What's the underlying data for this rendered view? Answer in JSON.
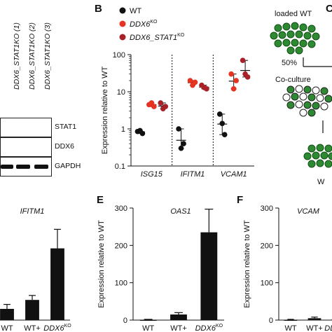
{
  "panelA": {
    "lanes": [
      "DDX6_STAT1KO (1)",
      "DDX6_STAT1KO (2)",
      "DDX6_STAT1KO (3)"
    ],
    "blots": [
      "STAT1",
      "DDX6",
      "GAPDH"
    ]
  },
  "panelB": {
    "letter": "B",
    "legend": [
      {
        "label": "WT",
        "color": "#111111"
      },
      {
        "label": "DDX6KO",
        "color": "#e63322"
      },
      {
        "label": "DDX6_STAT1KO",
        "color": "#a82028"
      }
    ],
    "ylabel": "Expression relative to WT",
    "genes": [
      "ISG15",
      "IFITM1",
      "VCAM1"
    ],
    "yticks": [
      "0.1",
      "1",
      "10",
      "100"
    ]
  },
  "panelC": {
    "letter": "C",
    "text1": "loaded WT",
    "text2": "50%",
    "text3": "Co-culture",
    "text4": "W"
  },
  "panelD": {
    "title": "IFITM1"
  },
  "panelE": {
    "letter": "E",
    "title": "OAS1",
    "ylabel": "Expression relative to WT",
    "yticks": [
      "0",
      "100",
      "200",
      "300"
    ]
  },
  "panelF": {
    "letter": "F",
    "title": "VCAM",
    "ylabel": "Expression relative to WT",
    "yticks": [
      "0",
      "100",
      "200",
      "300"
    ]
  },
  "xcats": [
    "WT",
    "WT+",
    "DDX6KO"
  ],
  "chart_data": [
    {
      "type": "scatter",
      "ylabel": "Expression relative to WT",
      "log_scale": true,
      "ylim": [
        0.1,
        100
      ],
      "categories": [
        "ISG15",
        "IFITM1",
        "VCAM1"
      ],
      "series": [
        {
          "name": "WT",
          "points": [
            [
              0.85,
              0.9,
              0.75
            ],
            [
              1.0,
              0.3,
              0.4
            ],
            [
              2.5,
              1.4,
              0.7
            ]
          ]
        },
        {
          "name": "DDX6KO",
          "points": [
            [
              4.5,
              5,
              4.0
            ],
            [
              20,
              15,
              18
            ],
            [
              30,
              12,
              20
            ]
          ]
        },
        {
          "name": "DDX6_STAT1KO",
          "points": [
            [
              5,
              3.5,
              4.0
            ],
            [
              15,
              13,
              12
            ],
            [
              70,
              30,
              25
            ]
          ]
        }
      ]
    },
    {
      "type": "bar",
      "title": "IFITM1",
      "categories": [
        "WT",
        "WT+",
        "DDX6KO"
      ],
      "values": [
        1,
        1.8,
        6.4
      ],
      "errors": [
        0.4,
        0.4,
        1.7
      ],
      "ylim": [
        0,
        10
      ]
    },
    {
      "type": "bar",
      "title": "OAS1",
      "ylabel": "Expression relative to WT",
      "categories": [
        "WT",
        "WT+",
        "DDX6KO"
      ],
      "values": [
        1,
        15,
        235
      ],
      "errors": [
        1,
        5,
        62
      ],
      "ylim": [
        0,
        300
      ]
    },
    {
      "type": "bar",
      "title": "VCAM",
      "ylabel": "Expression relative to WT",
      "categories": [
        "WT",
        "WT+",
        "DDX6KO"
      ],
      "values": [
        1,
        5,
        3
      ],
      "errors": [
        1,
        3,
        2
      ],
      "ylim": [
        0,
        300
      ]
    }
  ]
}
